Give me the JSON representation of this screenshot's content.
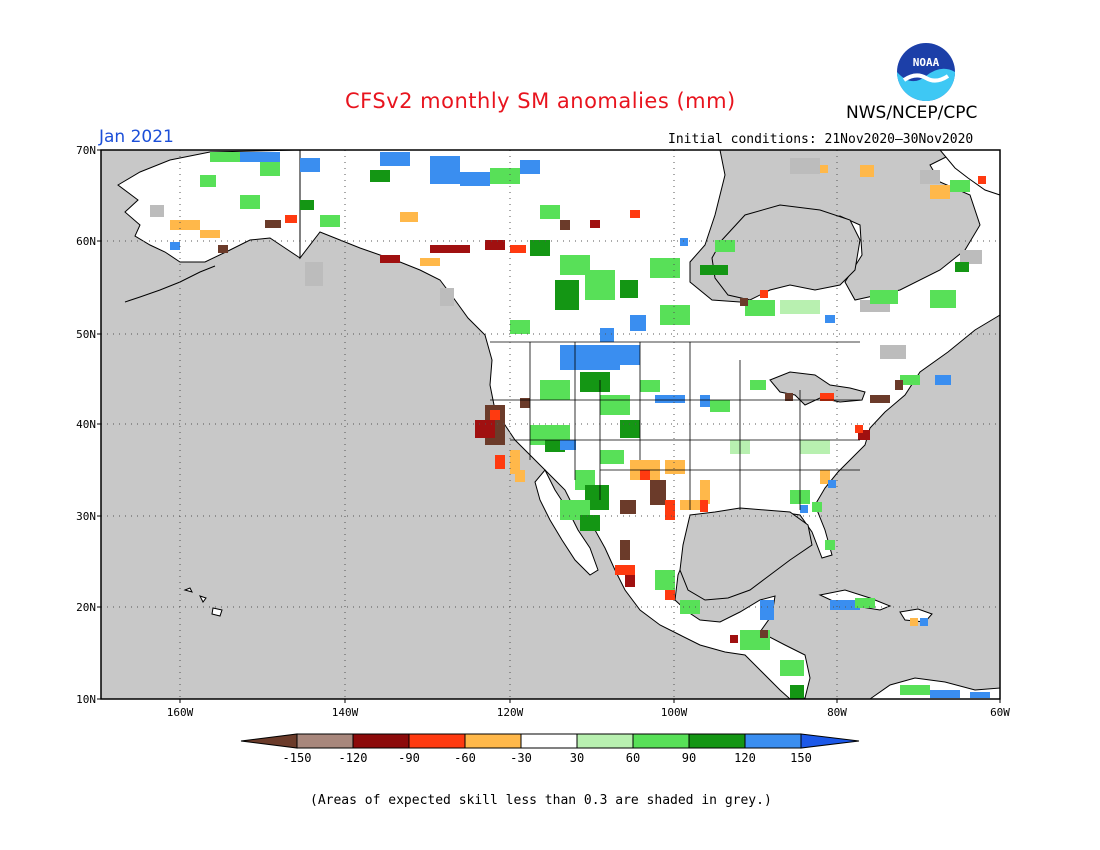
{
  "header": {
    "title": "CFSv2 monthly SM anomalies (mm)",
    "agency": "NWS/NCEP/CPC",
    "logo_text": "NOAA",
    "target_month": "Jan 2021",
    "initial_conditions": "Initial conditions: 21Nov2020–30Nov2020"
  },
  "map": {
    "lat_labels": [
      "70N",
      "60N",
      "50N",
      "40N",
      "30N",
      "20N",
      "10N"
    ],
    "lon_labels": [
      "160W",
      "140W",
      "120W",
      "100W",
      "80W",
      "60W"
    ],
    "ocean_color": "#c8c8c8",
    "land_color": "#ffffff",
    "grey_note": "(Areas of expected skill less than 0.3 are shaded in grey.)"
  },
  "legend": {
    "tick_labels": [
      "-150",
      "-120",
      "-90",
      "-60",
      "-30",
      "30",
      "60",
      "90",
      "120",
      "150"
    ],
    "colors": [
      "#6b3b2a",
      "#a8877c",
      "#8c0a0a",
      "#ff3a10",
      "#ffb84a",
      "#ffffff",
      "#b8f0b0",
      "#58e058",
      "#149614",
      "#3a8ef0",
      "#1c58e8"
    ]
  },
  "palette": {
    "brown": "#6b3b2a",
    "tan": "#a8877c",
    "darkred": "#a01010",
    "red": "#ff3a10",
    "orange": "#ffb84a",
    "lightgreen": "#b8f0b0",
    "green": "#58e058",
    "darkgreen": "#149614",
    "blue": "#3a8ef0",
    "grey": "#bcbcbc"
  }
}
